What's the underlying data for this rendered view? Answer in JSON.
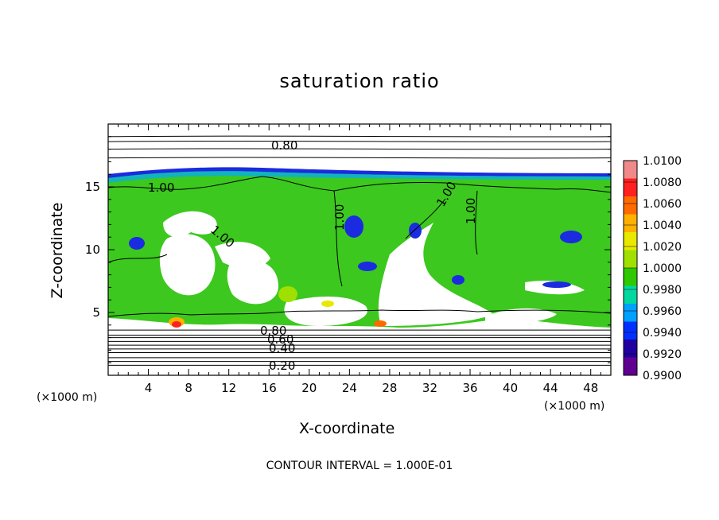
{
  "chart_data": {
    "type": "heatmap",
    "title": "saturation ratio",
    "xlabel": "X-coordinate",
    "ylabel": "Z-coordinate",
    "x_unit_label": "(×1000 m)",
    "x_ticks": [
      "4",
      "8",
      "12",
      "16",
      "20",
      "24",
      "28",
      "32",
      "36",
      "40",
      "44",
      "48"
    ],
    "y_ticks": [
      "5",
      "10",
      "15"
    ],
    "xlim": [
      0,
      50
    ],
    "ylim": [
      0,
      20
    ],
    "colorbar": {
      "labels": [
        "1.0100",
        "1.0080",
        "1.0060",
        "1.0040",
        "1.0020",
        "1.0000",
        "0.9980",
        "0.9960",
        "0.9940",
        "0.9920",
        "0.9900"
      ],
      "range": [
        0.99,
        1.01
      ],
      "colors": [
        "#f08a8a",
        "#ff2020",
        "#ff6a00",
        "#ffb000",
        "#e8e800",
        "#a0e000",
        "#30c800",
        "#00d8a0",
        "#00a0ff",
        "#0030ff",
        "#2000a0",
        "#600090"
      ]
    },
    "contour_labels": [
      "0.80",
      "1.00",
      "1.00",
      "1.00",
      "1.00",
      "1.00",
      "0.80",
      "0.60",
      "0.40",
      "0.20"
    ],
    "footer": "CONTOUR INTERVAL = 1.000E-01",
    "contour_levels": [
      {
        "label": "0.80",
        "z": 18.6
      },
      {
        "label": "0.60",
        "z": 3.0
      },
      {
        "label": "0.40",
        "z": 2.4
      },
      {
        "label": "0.20",
        "z": 0.8
      }
    ]
  }
}
